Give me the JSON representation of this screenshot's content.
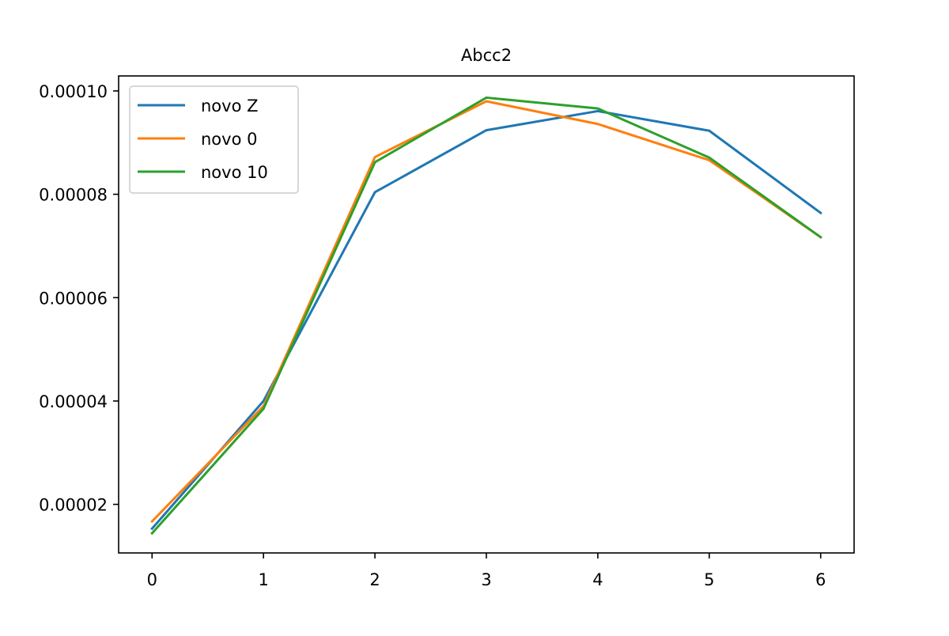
{
  "chart_data": {
    "type": "line",
    "title": "Abcc2",
    "xlabel": "",
    "ylabel": "",
    "x": [
      0,
      1,
      2,
      3,
      4,
      5,
      6
    ],
    "xticks": [
      0,
      1,
      2,
      3,
      4,
      5,
      6
    ],
    "xtick_labels": [
      "0",
      "1",
      "2",
      "3",
      "4",
      "5",
      "6"
    ],
    "yticks": [
      2e-05,
      4e-05,
      6e-05,
      8e-05,
      0.0001
    ],
    "ytick_labels": [
      "0.00002",
      "0.00004",
      "0.00006",
      "0.00008",
      "0.00010"
    ],
    "xlim": [
      -0.3,
      6.3
    ],
    "ylim": [
      1.06e-05,
      0.0001029
    ],
    "grid": false,
    "legend_position": "upper-left",
    "series": [
      {
        "name": "novo Z",
        "color": "#1f77b4",
        "values": [
          1.53e-05,
          4e-05,
          8.04e-05,
          9.24e-05,
          9.61e-05,
          9.23e-05,
          7.64e-05
        ]
      },
      {
        "name": "novo 0",
        "color": "#ff7f0e",
        "values": [
          1.67e-05,
          3.9e-05,
          8.72e-05,
          9.8e-05,
          9.36e-05,
          8.66e-05,
          7.17e-05
        ]
      },
      {
        "name": "novo 10",
        "color": "#2ca02c",
        "values": [
          1.44e-05,
          3.85e-05,
          8.62e-05,
          9.87e-05,
          9.66e-05,
          8.71e-05,
          7.17e-05
        ]
      }
    ]
  }
}
